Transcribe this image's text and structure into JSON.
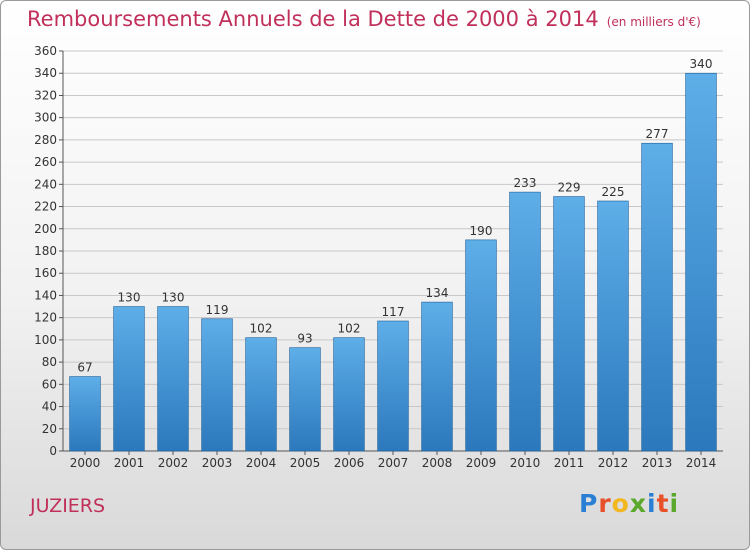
{
  "header": {
    "title": "Remboursements Annuels de la Dette de 2000 à 2014",
    "unit": "(en milliers d'€)"
  },
  "footer": {
    "commune": "JUZIERS",
    "logo_letters": [
      "P",
      "r",
      "o",
      "x",
      "i",
      "t",
      "i"
    ],
    "logo_colors": [
      "#2a7fd4",
      "#e8502a",
      "#f2b71f",
      "#5aa92c",
      "#2a7fd4",
      "#e8502a",
      "#5aa92c"
    ]
  },
  "colors": {
    "title": "#c0305a",
    "bar_top": "#5eaee8",
    "bar_bottom": "#2b78bc",
    "grid": "#c8c8c8",
    "axis_text": "#333333"
  },
  "chart_data": {
    "type": "bar",
    "categories": [
      "2000",
      "2001",
      "2002",
      "2003",
      "2004",
      "2005",
      "2006",
      "2007",
      "2008",
      "2009",
      "2010",
      "2011",
      "2012",
      "2013",
      "2014"
    ],
    "values": [
      67,
      130,
      130,
      119,
      102,
      93,
      102,
      117,
      134,
      190,
      233,
      229,
      225,
      277,
      340
    ],
    "ylim": [
      0,
      360
    ],
    "yticks": [
      0,
      20,
      40,
      60,
      80,
      100,
      120,
      140,
      160,
      180,
      200,
      220,
      240,
      260,
      280,
      300,
      320,
      340,
      360
    ],
    "grid": true,
    "data_labels": true
  }
}
